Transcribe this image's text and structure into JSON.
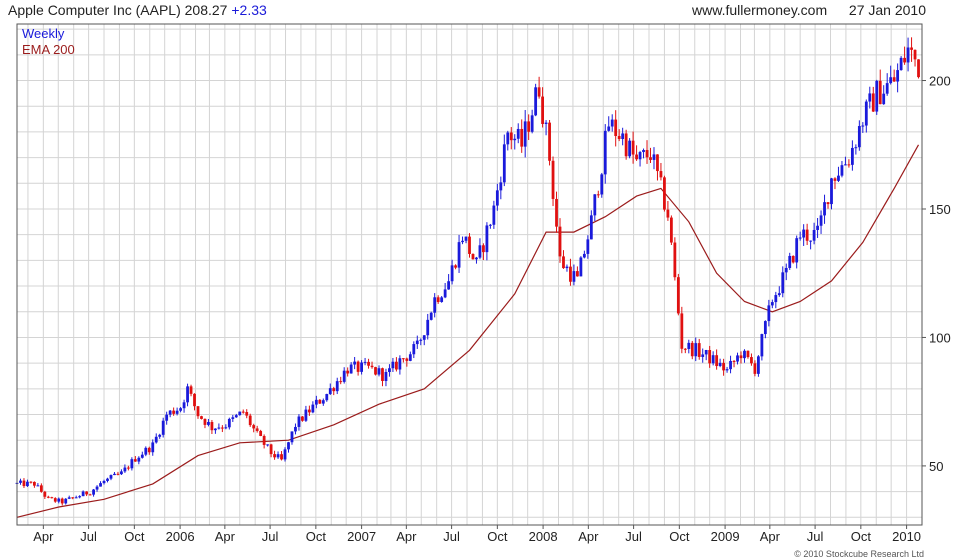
{
  "header": {
    "title": "Apple Computer Inc (AAPL)",
    "last": "208.27",
    "change": "+2.33",
    "site": "www.fullermoney.com",
    "date": "27 Jan 2010"
  },
  "footer": {
    "credit": "© 2010 Stockcube Research Ltd"
  },
  "colors": {
    "up": "#1a1adb",
    "down": "#e01010",
    "ema": "#9b1c1c",
    "grid": "#d4d4d4",
    "frame": "#555555"
  },
  "chart_data": {
    "type": "candlestick",
    "legend": [
      {
        "label": "Weekly",
        "color": "#1a1adb"
      },
      {
        "label": "EMA 200",
        "color": "#9b1c1c"
      }
    ],
    "legend_position": "top-left",
    "y_axis_position": "right",
    "grid": true,
    "xlim": [
      "2005-02-07",
      "2010-02-01"
    ],
    "ylim": [
      27,
      222
    ],
    "y_ticks": [
      50,
      100,
      150,
      200
    ],
    "x_ticks": [
      {
        "date": "2005-04-01",
        "label": "Apr"
      },
      {
        "date": "2005-07-01",
        "label": "Jul"
      },
      {
        "date": "2005-10-01",
        "label": "Oct"
      },
      {
        "date": "2006-01-01",
        "label": "2006"
      },
      {
        "date": "2006-04-01",
        "label": "Apr"
      },
      {
        "date": "2006-07-01",
        "label": "Jul"
      },
      {
        "date": "2006-10-01",
        "label": "Oct"
      },
      {
        "date": "2007-01-01",
        "label": "2007"
      },
      {
        "date": "2007-04-01",
        "label": "Apr"
      },
      {
        "date": "2007-07-01",
        "label": "Jul"
      },
      {
        "date": "2007-10-01",
        "label": "Oct"
      },
      {
        "date": "2008-01-01",
        "label": "2008"
      },
      {
        "date": "2008-04-01",
        "label": "Apr"
      },
      {
        "date": "2008-07-01",
        "label": "Jul"
      },
      {
        "date": "2008-10-01",
        "label": "Oct"
      },
      {
        "date": "2009-01-01",
        "label": "2009"
      },
      {
        "date": "2009-04-01",
        "label": "Apr"
      },
      {
        "date": "2009-07-01",
        "label": "Jul"
      },
      {
        "date": "2009-10-01",
        "label": "Oct"
      },
      {
        "date": "2010-01-01",
        "label": "2010"
      }
    ],
    "close_anchors": [
      [
        "2005-02-07",
        43
      ],
      [
        "2005-03-14",
        43
      ],
      [
        "2005-04-11",
        37
      ],
      [
        "2005-05-09",
        36
      ],
      [
        "2005-06-06",
        38
      ],
      [
        "2005-07-04",
        40
      ],
      [
        "2005-08-01",
        44
      ],
      [
        "2005-09-05",
        47
      ],
      [
        "2005-10-03",
        53
      ],
      [
        "2005-11-07",
        58
      ],
      [
        "2005-12-05",
        70
      ],
      [
        "2006-01-02",
        73
      ],
      [
        "2006-01-16",
        80
      ],
      [
        "2006-02-06",
        70
      ],
      [
        "2006-03-06",
        65
      ],
      [
        "2006-04-03",
        66
      ],
      [
        "2006-05-08",
        71
      ],
      [
        "2006-06-05",
        62
      ],
      [
        "2006-07-03",
        55
      ],
      [
        "2006-07-24",
        52
      ],
      [
        "2006-08-21",
        66
      ],
      [
        "2006-09-25",
        73
      ],
      [
        "2006-10-23",
        78
      ],
      [
        "2006-12-04",
        88
      ],
      [
        "2007-01-15",
        88
      ],
      [
        "2007-02-19",
        85
      ],
      [
        "2007-03-19",
        91
      ],
      [
        "2007-04-23",
        96
      ],
      [
        "2007-05-28",
        115
      ],
      [
        "2007-06-25",
        122
      ],
      [
        "2007-07-23",
        140
      ],
      [
        "2007-08-20",
        128
      ],
      [
        "2007-09-24",
        150
      ],
      [
        "2007-10-22",
        180
      ],
      [
        "2007-11-19",
        175
      ],
      [
        "2007-12-24",
        198
      ],
      [
        "2008-01-14",
        170
      ],
      [
        "2008-02-04",
        130
      ],
      [
        "2008-03-10",
        122
      ],
      [
        "2008-04-07",
        145
      ],
      [
        "2008-05-12",
        183
      ],
      [
        "2008-06-09",
        178
      ],
      [
        "2008-07-07",
        168
      ],
      [
        "2008-08-04",
        172
      ],
      [
        "2008-09-08",
        148
      ],
      [
        "2008-10-06",
        97
      ],
      [
        "2008-11-03",
        95
      ],
      [
        "2008-12-01",
        92
      ],
      [
        "2009-01-05",
        87
      ],
      [
        "2009-02-02",
        94
      ],
      [
        "2009-03-02",
        88
      ],
      [
        "2009-04-06",
        115
      ],
      [
        "2009-05-04",
        125
      ],
      [
        "2009-06-01",
        140
      ],
      [
        "2009-07-06",
        140
      ],
      [
        "2009-08-03",
        162
      ],
      [
        "2009-09-07",
        170
      ],
      [
        "2009-10-05",
        185
      ],
      [
        "2009-11-02",
        195
      ],
      [
        "2009-12-07",
        200
      ],
      [
        "2010-01-04",
        212
      ],
      [
        "2010-01-25",
        206
      ]
    ],
    "ema_200": [
      [
        "2005-02-07",
        30
      ],
      [
        "2005-05-02",
        34
      ],
      [
        "2005-08-01",
        37
      ],
      [
        "2005-11-07",
        43
      ],
      [
        "2006-02-06",
        54
      ],
      [
        "2006-05-01",
        59
      ],
      [
        "2006-08-07",
        60
      ],
      [
        "2006-11-06",
        66
      ],
      [
        "2007-02-05",
        74
      ],
      [
        "2007-05-07",
        80
      ],
      [
        "2007-08-06",
        95
      ],
      [
        "2007-11-05",
        117
      ],
      [
        "2008-01-07",
        141
      ],
      [
        "2008-03-03",
        141
      ],
      [
        "2008-05-05",
        147
      ],
      [
        "2008-07-07",
        155
      ],
      [
        "2008-08-25",
        158
      ],
      [
        "2008-10-20",
        145
      ],
      [
        "2008-12-15",
        125
      ],
      [
        "2009-02-09",
        114
      ],
      [
        "2009-04-06",
        110
      ],
      [
        "2009-06-01",
        114
      ],
      [
        "2009-08-03",
        122
      ],
      [
        "2009-10-05",
        137
      ],
      [
        "2009-12-07",
        158
      ],
      [
        "2010-01-25",
        175
      ]
    ]
  }
}
